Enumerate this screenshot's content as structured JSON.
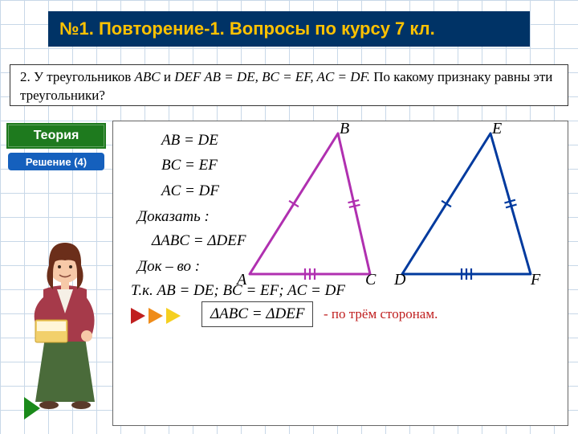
{
  "header": {
    "title": "№1. Повторение-1. Вопросы по курсу 7 кл."
  },
  "problem": {
    "number": "2.",
    "text_pre": " У треугольников ",
    "t1": "ABC",
    "text_mid1": " и ",
    "t2": "DEF",
    "eq1": "  AB = DE,  BC = EF,  AC = DF.",
    "text_post": " По какому признаку равны эти треугольники?"
  },
  "buttons": {
    "theory": "Теория",
    "solution": "Решение (4)"
  },
  "given": {
    "eq1": "AB = DE",
    "eq2": "BC = EF",
    "eq3": "AC = DF"
  },
  "prove": {
    "label": "Доказать :",
    "eq": "ΔABC = ΔDEF"
  },
  "proof": {
    "label": "Док – во :",
    "tk": "Т.к.  AB = DE;  BC = EF;  AC = DF"
  },
  "conclusion": {
    "eq": "ΔABC = ΔDEF",
    "reason": "- по трём сторонам."
  },
  "triangles": {
    "abc": {
      "color": "#b030b0",
      "A": [
        20,
        190
      ],
      "B": [
        130,
        15
      ],
      "C": [
        170,
        190
      ],
      "labels": {
        "A": "A",
        "B": "B",
        "C": "C"
      }
    },
    "def": {
      "color": "#003a9e",
      "D": [
        210,
        190
      ],
      "E": [
        320,
        15
      ],
      "F": [
        370,
        190
      ],
      "labels": {
        "D": "D",
        "E": "E",
        "F": "F"
      }
    },
    "tick_color_1": "#b030b0",
    "tick_color_2": "#003a9e",
    "stroke_width": 3
  },
  "arrow_colors": [
    "#c02020",
    "#ef8c1a",
    "#f5d020"
  ],
  "colors": {
    "header_bg": "#003366",
    "header_fg": "#ffc200",
    "theory_bg": "#1e7a1e",
    "solution_bg": "#1560bd",
    "reason_color": "#c02020"
  },
  "teacher_illustration": {
    "hair": "#6b2e1a",
    "skin": "#f7c9a8",
    "jacket": "#a63a4a",
    "blouse": "#f5f0e6",
    "skirt": "#4a6b3a",
    "book": "#f2d06b",
    "book_pages": "#fff6d8"
  }
}
